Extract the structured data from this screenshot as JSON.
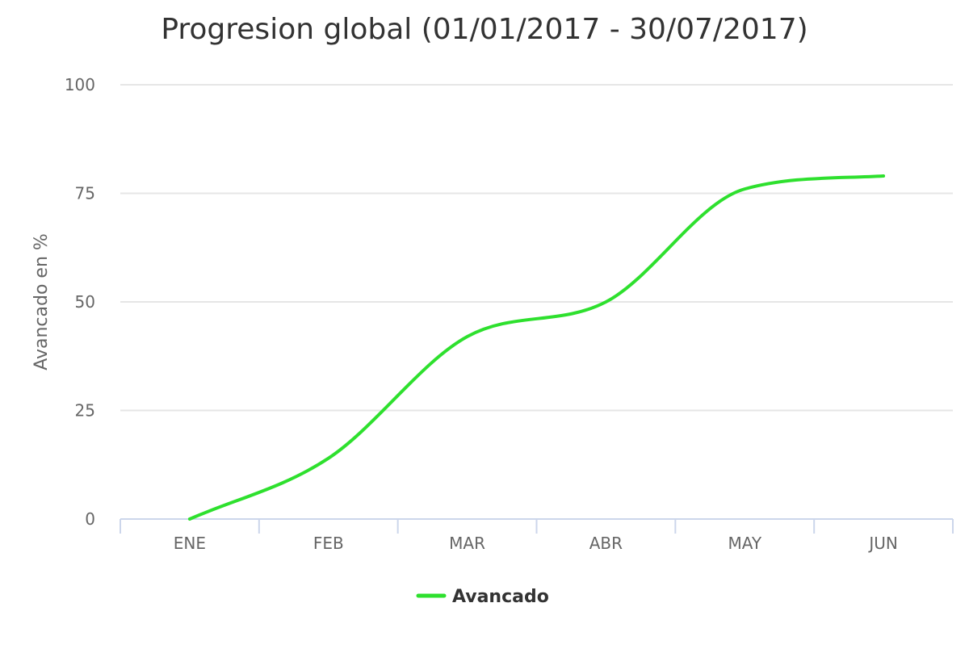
{
  "chart_data": {
    "type": "line",
    "title": "Progresion global (01/01/2017 - 30/07/2017)",
    "xlabel": "",
    "ylabel": "Avancado en %",
    "categories": [
      "ENE",
      "FEB",
      "MAR",
      "ABR",
      "MAY",
      "JUN"
    ],
    "ylim": [
      0,
      100
    ],
    "yticks": [
      0,
      25,
      50,
      75,
      100
    ],
    "grid": true,
    "legend_position": "bottom-center",
    "series": [
      {
        "name": "Avancado",
        "color": "#2ee02e",
        "values": [
          0,
          14,
          42,
          50,
          76,
          79
        ]
      }
    ]
  }
}
